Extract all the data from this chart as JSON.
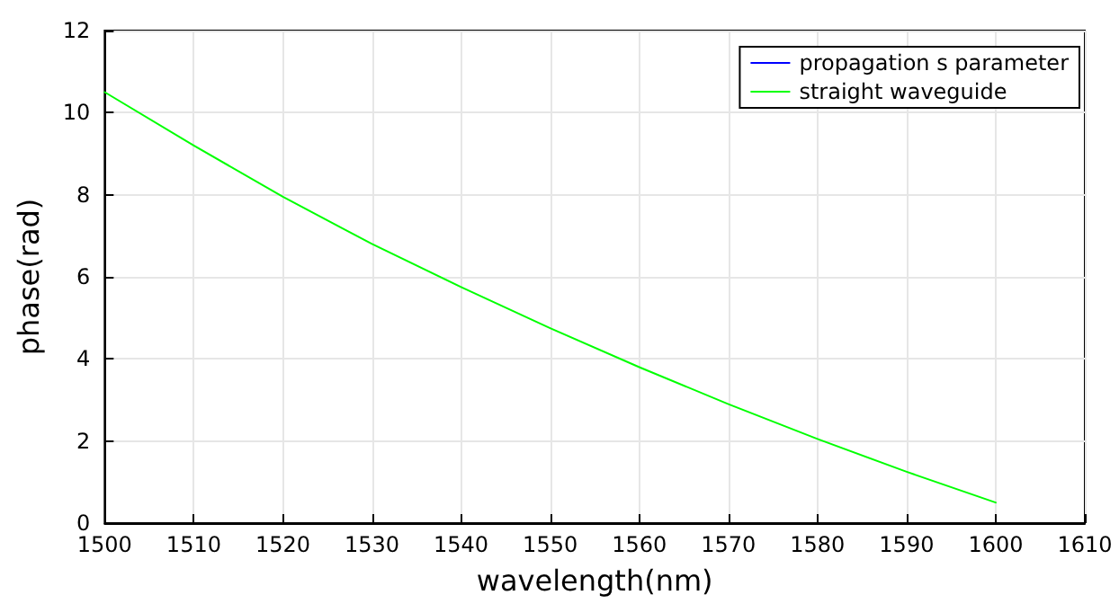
{
  "chart_data": {
    "type": "line",
    "xlabel": "wavelength(nm)",
    "ylabel": "phase(rad)",
    "x": [
      1500,
      1510,
      1520,
      1530,
      1540,
      1550,
      1560,
      1570,
      1580,
      1590,
      1600
    ],
    "series": [
      {
        "name": "propagation s parameter",
        "color": "#0000ff",
        "values": [
          null,
          null,
          null,
          null,
          null,
          null,
          null,
          null,
          null,
          null,
          null
        ]
      },
      {
        "name": "straight waveguide",
        "color": "#00ff00",
        "values": [
          10.5,
          9.2,
          7.95,
          6.8,
          5.75,
          4.75,
          3.8,
          2.9,
          2.05,
          1.25,
          0.5
        ]
      }
    ],
    "xlim": [
      1500,
      1610
    ],
    "xticks": [
      1500,
      1510,
      1520,
      1530,
      1540,
      1550,
      1560,
      1570,
      1580,
      1590,
      1600,
      1610
    ],
    "ylim": [
      0,
      12
    ],
    "yticks": [
      0,
      2,
      4,
      6,
      8,
      10,
      12
    ],
    "grid": true,
    "legend": "top right",
    "marker": "none",
    "line_style": "solid"
  }
}
